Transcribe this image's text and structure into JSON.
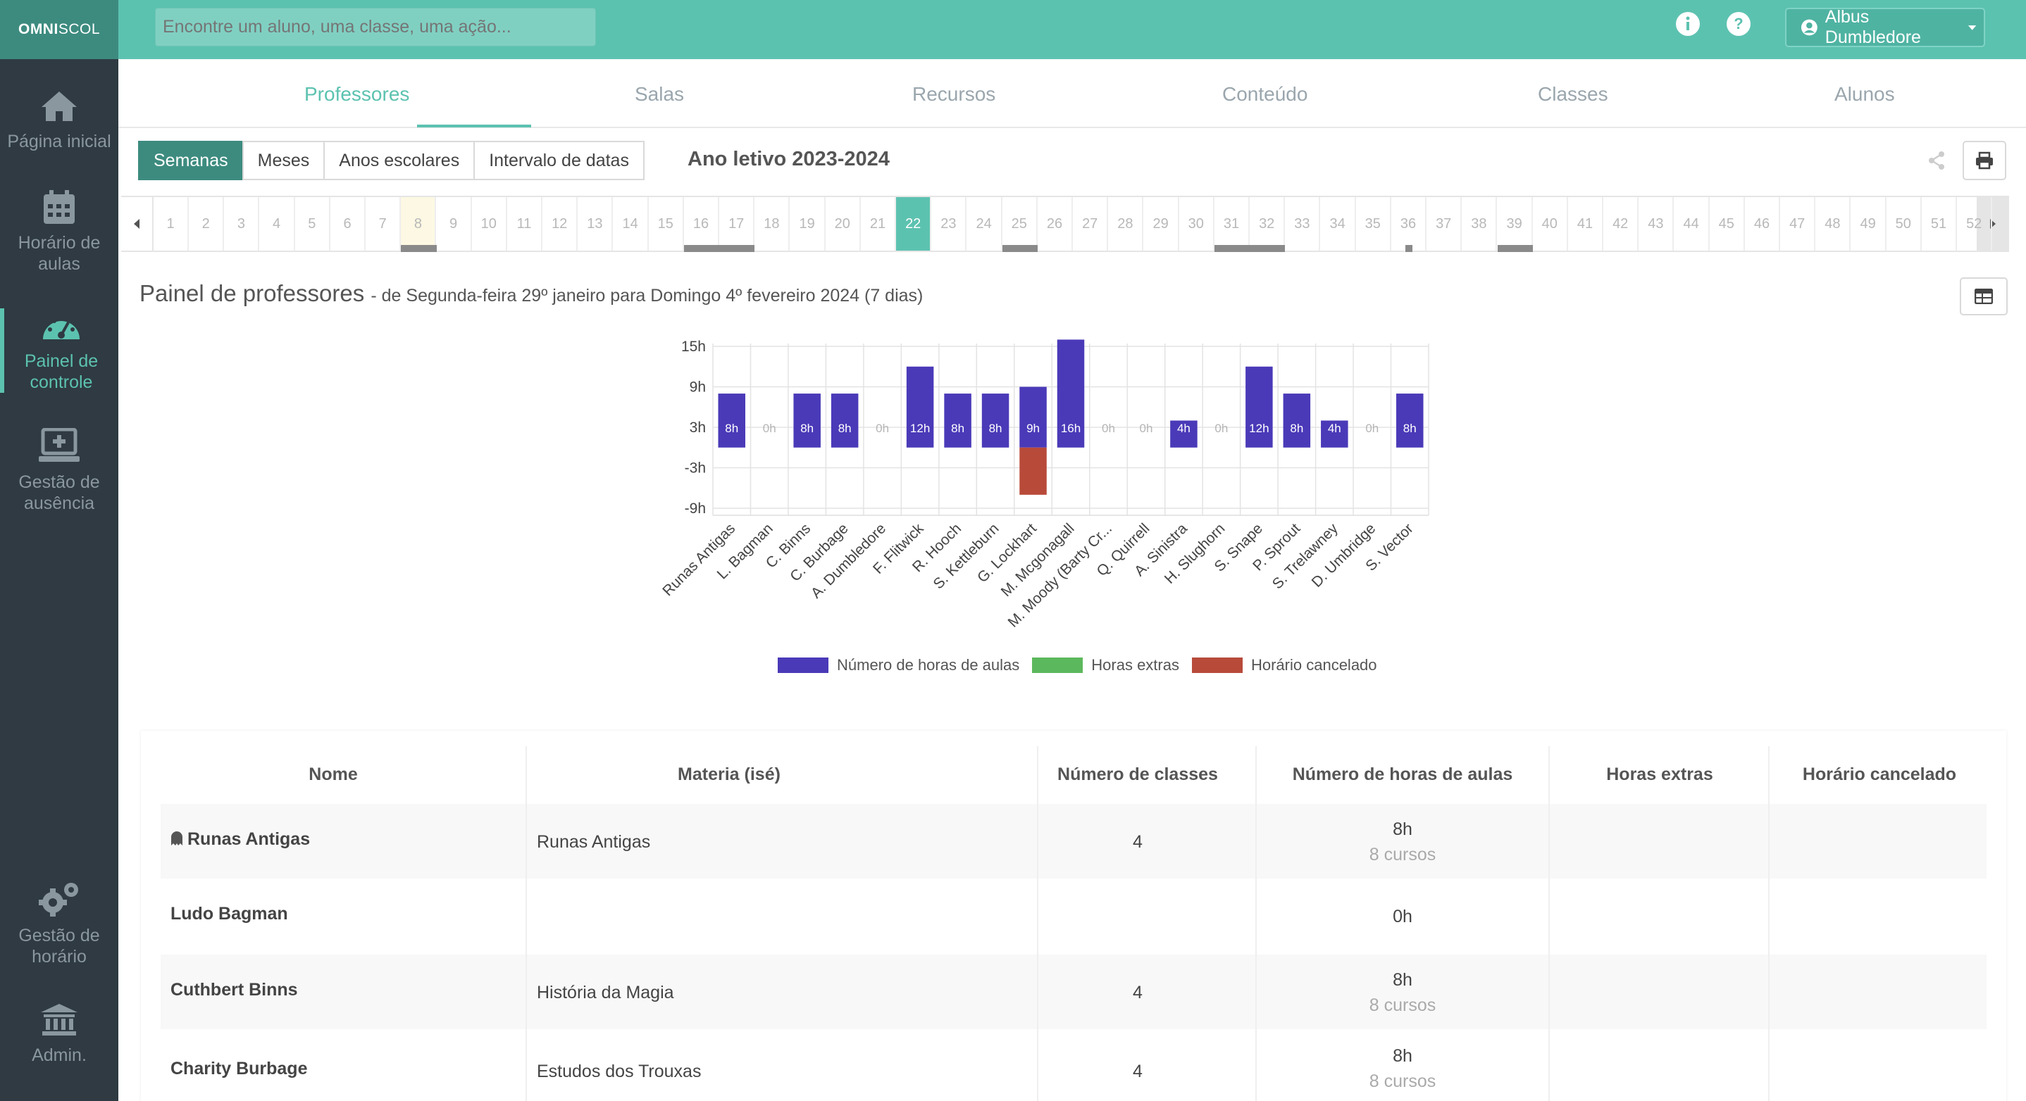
{
  "app": {
    "logo_bold": "OMNI",
    "logo_rest": "SCOL",
    "search_placeholder": "Encontre um aluno, uma classe, uma ação...",
    "user_name": "Albus Dumbledore"
  },
  "sidebar": {
    "home": "Página inicial",
    "timetable": "Horário de aulas",
    "dashboard": "Painel de controle",
    "absence": "Gestão de ausência",
    "schedule_mgmt": "Gestão de horário",
    "admin": "Admin."
  },
  "tabs": [
    "Professores",
    "Salas",
    "Recursos",
    "Conteúdo",
    "Classes",
    "Alunos"
  ],
  "period_modes": [
    "Semanas",
    "Meses",
    "Anos escolares",
    "Intervalo de datas"
  ],
  "year_title": "Ano letivo 2023-2024",
  "weeks": [
    "1",
    "2",
    "3",
    "4",
    "5",
    "6",
    "7",
    "8",
    "9",
    "10",
    "11",
    "12",
    "13",
    "14",
    "15",
    "16",
    "17",
    "18",
    "19",
    "20",
    "21",
    "22",
    "23",
    "24",
    "25",
    "26",
    "27",
    "28",
    "29",
    "30",
    "31",
    "32",
    "33",
    "34",
    "35",
    "36",
    "37",
    "38",
    "39",
    "40",
    "41",
    "42",
    "43",
    "44",
    "45",
    "46",
    "47",
    "48",
    "49",
    "50",
    "51",
    "52"
  ],
  "current_week": "22",
  "highlight_week": "8",
  "panel": {
    "title": "Painel de professores",
    "subtitle": "- de Segunda-feira 29º janeiro para Domingo 4º fevereiro 2024 (7 dias)"
  },
  "chart_data": {
    "type": "bar",
    "categories": [
      "Runas Antigas",
      "L. Bagman",
      "C. Binns",
      "C. Burbage",
      "A. Dumbledore",
      "F. Flitwick",
      "R. Hooch",
      "S. Kettleburn",
      "G. Lockhart",
      "M. Mcgonagall",
      "M. Moody (Barty Cr...",
      "Q. Quirrell",
      "A. Sinistra",
      "H. Slughorn",
      "S. Snape",
      "P. Sprout",
      "S. Trelawney",
      "D. Umbridge",
      "S. Vector"
    ],
    "series": [
      {
        "name": "Número de horas de aulas",
        "color": "#4a3ab8",
        "values": [
          8,
          0,
          8,
          8,
          0,
          12,
          8,
          8,
          9,
          16,
          0,
          0,
          4,
          0,
          12,
          8,
          4,
          0,
          8
        ]
      },
      {
        "name": "Horas extras",
        "color": "#5cb85c",
        "values": [
          0,
          0,
          0,
          0,
          0,
          0,
          0,
          0,
          0,
          0,
          0,
          0,
          0,
          0,
          0,
          0,
          0,
          0,
          0
        ]
      },
      {
        "name": "Horário cancelado",
        "color": "#b84a3a",
        "values": [
          0,
          0,
          0,
          0,
          0,
          0,
          0,
          0,
          -7,
          0,
          0,
          0,
          0,
          0,
          0,
          0,
          0,
          0,
          0
        ]
      }
    ],
    "data_labels": [
      "8h",
      "0h",
      "8h",
      "8h",
      "0h",
      "12h",
      "8h",
      "8h",
      "9h",
      "16h",
      "0h",
      "0h",
      "4h",
      "0h",
      "12h",
      "8h",
      "4h",
      "0h",
      "8h"
    ],
    "y_ticks": [
      "15h",
      "9h",
      "3h",
      "-3h",
      "-9h"
    ],
    "ylim": [
      -9,
      15
    ],
    "legend_position": "bottom"
  },
  "table": {
    "headers": [
      "Nome",
      "Materia (isé)",
      "Número de classes",
      "Número de horas de aulas",
      "Horas extras",
      "Horário cancelado"
    ],
    "rows": [
      {
        "name": "Runas Antigas",
        "subject": "Runas Antigas",
        "classes": "4",
        "hours": "8h",
        "courses": "8 cursos"
      },
      {
        "name": "Ludo Bagman",
        "subject": "",
        "classes": "",
        "hours": "0h",
        "courses": ""
      },
      {
        "name": "Cuthbert Binns",
        "subject": "História da Magia",
        "classes": "4",
        "hours": "8h",
        "courses": "8 cursos"
      },
      {
        "name": "Charity Burbage",
        "subject": "Estudos dos Trouxas",
        "classes": "4",
        "hours": "8h",
        "courses": "8 cursos"
      }
    ]
  }
}
